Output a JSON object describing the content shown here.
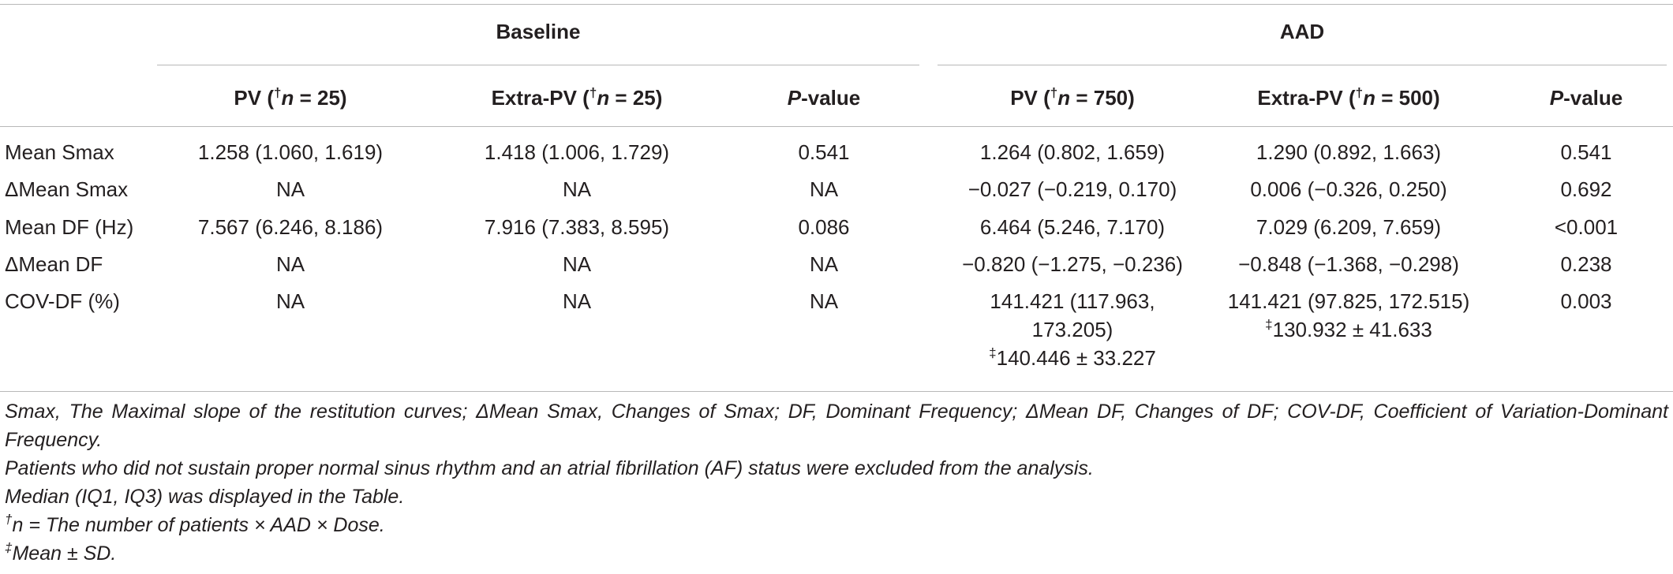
{
  "table": {
    "groups": [
      "Baseline",
      "AAD"
    ],
    "columns": [
      {
        "pre": "PV (",
        "mark": "†",
        "var": "n",
        "post": " = 25)"
      },
      {
        "pre": "Extra-PV (",
        "mark": "†",
        "var": "n",
        "post": " = 25)"
      },
      {
        "var": "P",
        "post": "-value"
      },
      {
        "pre": "PV (",
        "mark": "†",
        "var": "n",
        "post": " = 750)"
      },
      {
        "pre": "Extra-PV (",
        "mark": "†",
        "var": "n",
        "post": " = 500)"
      },
      {
        "var": "P",
        "post": "-value"
      }
    ],
    "rows": [
      {
        "label": "Mean Smax",
        "cells": [
          "1.258 (1.060, 1.619)",
          "1.418 (1.006, 1.729)",
          "0.541",
          "1.264 (0.802, 1.659)",
          "1.290 (0.892, 1.663)",
          "0.541"
        ]
      },
      {
        "label": "ΔMean Smax",
        "cells": [
          "NA",
          "NA",
          "NA",
          "−0.027 (−0.219, 0.170)",
          "0.006 (−0.326, 0.250)",
          "0.692"
        ]
      },
      {
        "label": "Mean DF (Hz)",
        "cells": [
          "7.567 (6.246, 8.186)",
          "7.916 (7.383, 8.595)",
          "0.086",
          "6.464 (5.246, 7.170)",
          "7.029 (6.209, 7.659)",
          "<0.001"
        ]
      },
      {
        "label": "ΔMean DF",
        "cells": [
          "NA",
          "NA",
          "NA",
          "−0.820 (−1.275, −0.236)",
          "−0.848 (−1.368, −0.298)",
          "0.238"
        ]
      },
      {
        "label": "COV-DF (%)",
        "cells": [
          "NA",
          "NA",
          "NA",
          {
            "main": "141.421 (117.963, 173.205)",
            "mark": "‡",
            "extra": "140.446 ± 33.227"
          },
          {
            "main": "141.421 (97.825, 172.515)",
            "mark": "‡",
            "extra": "130.932 ± 41.633"
          },
          "0.003"
        ]
      }
    ]
  },
  "footnotes": [
    "Smax, The Maximal slope of the restitution curves; ΔMean Smax, Changes of Smax; DF, Dominant Frequency; ΔMean DF, Changes of DF; COV-DF, Coefficient of Variation-Dominant Frequency.",
    "Patients who did not sustain proper normal sinus rhythm and an atrial fibrillation (AF) status were excluded from the analysis.",
    "Median (IQ1, IQ3) was displayed in the Table.",
    {
      "mark": "†",
      "text": "n = The number of patients × AAD × Dose."
    },
    {
      "mark": "‡",
      "text": "Mean ± SD."
    }
  ]
}
